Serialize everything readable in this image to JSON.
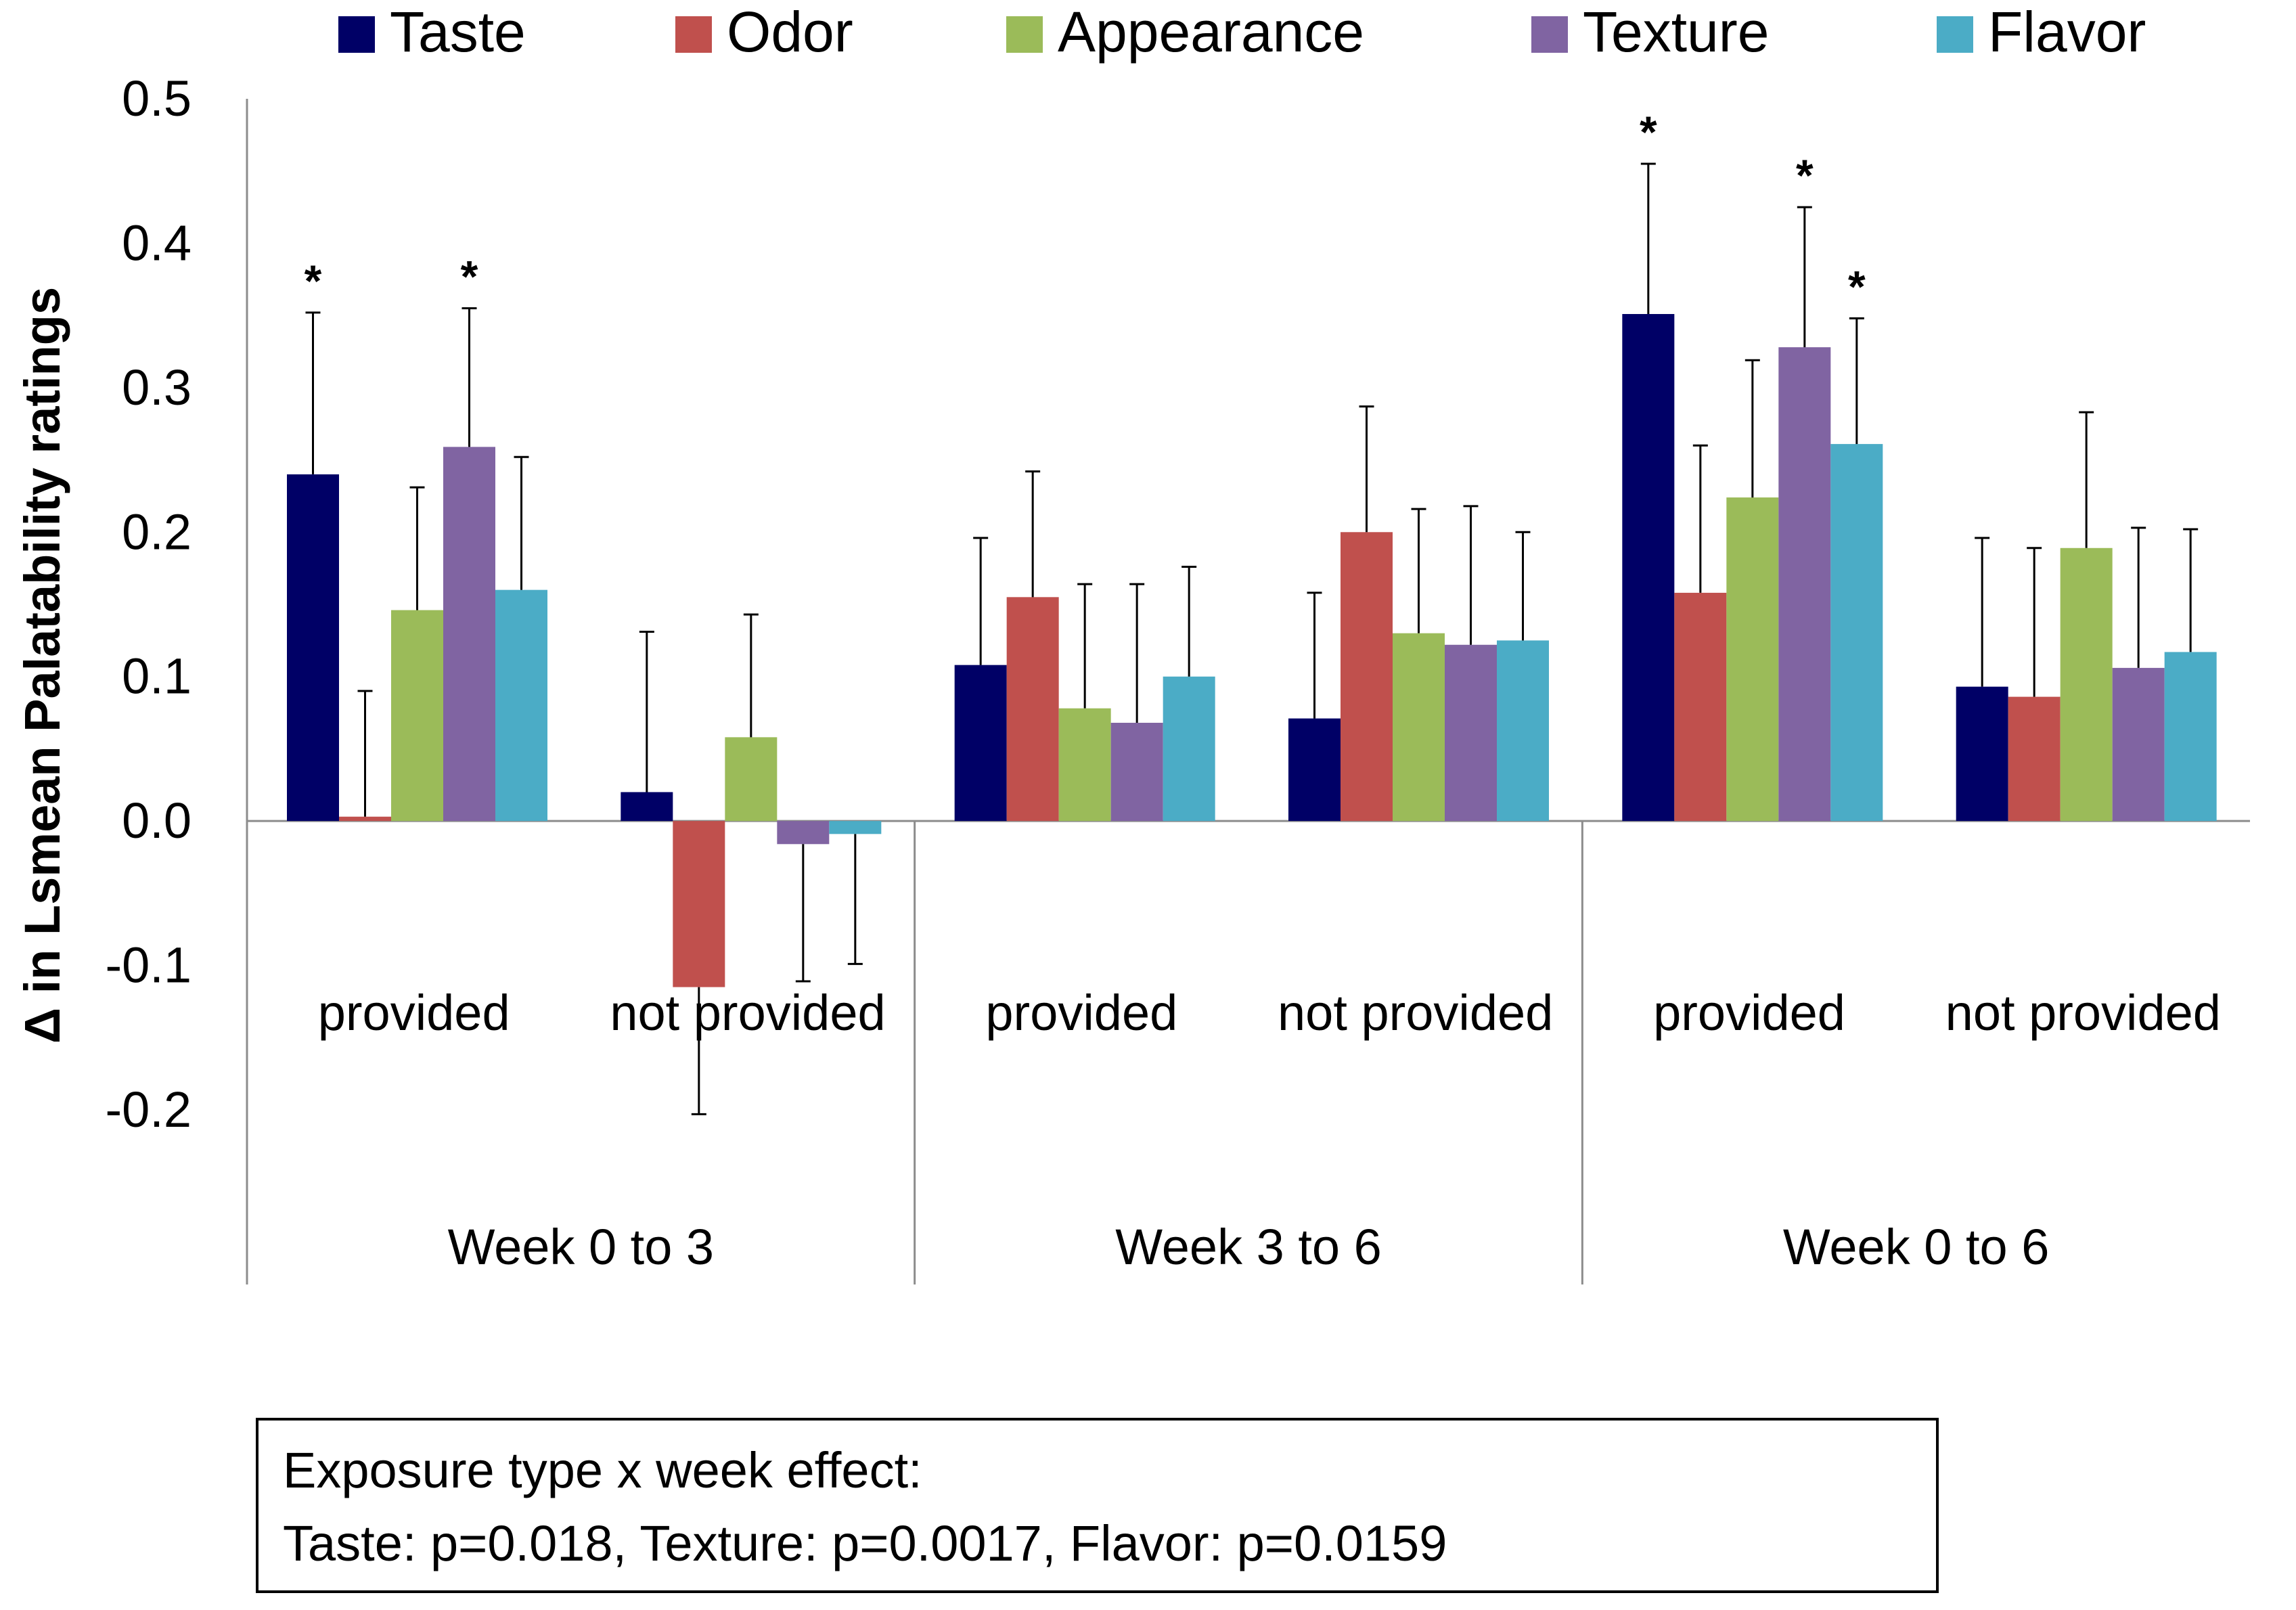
{
  "chart_data": {
    "type": "bar",
    "title": "",
    "xlabel": "",
    "ylabel": "Δ in Lsmean Palatability ratings",
    "ylim": [
      -0.2,
      0.5
    ],
    "ytick_step": 0.1,
    "ytick_labels": [
      "-0.2",
      "-0.1",
      "0.0",
      "0.1",
      "0.2",
      "0.3",
      "0.4",
      "0.5"
    ],
    "grid": false,
    "legend_position": "top",
    "groups": [
      "Week 0 to 3",
      "Week 3 to 6",
      "Week 0 to 6"
    ],
    "categories": [
      "provided",
      "not provided",
      "provided",
      "not provided",
      "provided",
      "not provided"
    ],
    "category_group": [
      0,
      0,
      1,
      1,
      2,
      2
    ],
    "series": [
      {
        "name": "Taste",
        "color": "#000066",
        "values": [
          0.24,
          0.02,
          0.108,
          0.071,
          0.351,
          0.093
        ],
        "errors": [
          0.112,
          0.111,
          0.088,
          0.087,
          0.104,
          0.103
        ],
        "significant": [
          true,
          false,
          false,
          false,
          true,
          false
        ]
      },
      {
        "name": "Odor",
        "color": "#C0504D",
        "values": [
          0.003,
          -0.115,
          0.155,
          0.2,
          0.158,
          0.086
        ],
        "errors": [
          0.087,
          0.088,
          0.087,
          0.087,
          0.102,
          0.103
        ],
        "significant": [
          false,
          false,
          false,
          false,
          false,
          false
        ]
      },
      {
        "name": "Appearance",
        "color": "#9BBB59",
        "values": [
          0.146,
          0.058,
          0.078,
          0.13,
          0.224,
          0.189
        ],
        "errors": [
          0.085,
          0.085,
          0.086,
          0.086,
          0.095,
          0.094
        ],
        "significant": [
          false,
          false,
          false,
          false,
          false,
          false
        ]
      },
      {
        "name": "Texture",
        "color": "#8064A2",
        "values": [
          0.259,
          -0.016,
          0.068,
          0.122,
          0.328,
          0.106
        ],
        "errors": [
          0.096,
          0.095,
          0.096,
          0.096,
          0.097,
          0.097
        ],
        "significant": [
          true,
          false,
          false,
          false,
          true,
          false
        ]
      },
      {
        "name": "Flavor",
        "color": "#4BACC6",
        "values": [
          0.16,
          -0.009,
          0.1,
          0.125,
          0.261,
          0.117
        ],
        "errors": [
          0.092,
          0.09,
          0.076,
          0.075,
          0.087,
          0.085
        ],
        "significant": [
          false,
          false,
          false,
          false,
          true,
          false
        ]
      }
    ],
    "significance_marker": "*",
    "annotation_lines": [
      "Exposure type x week effect:",
      "Taste: p=0.018, Texture: p=0.0017, Flavor: p=0.0159"
    ]
  }
}
